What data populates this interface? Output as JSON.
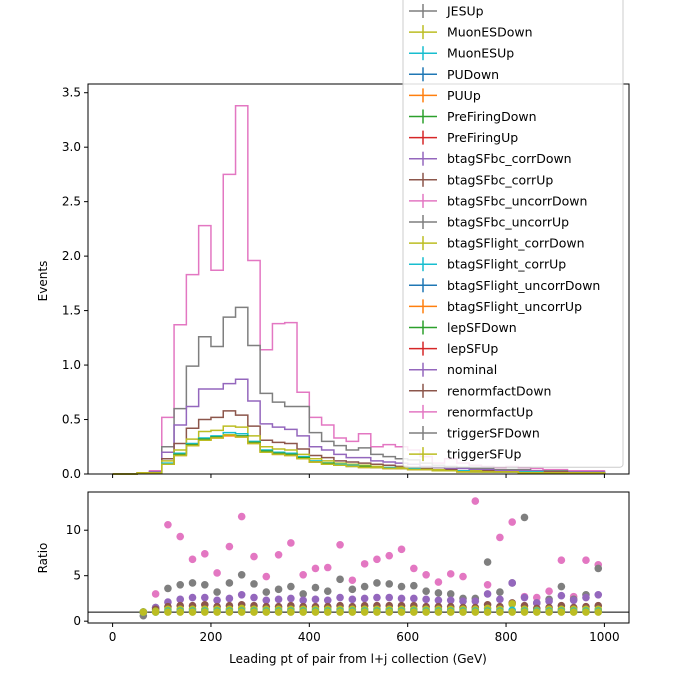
{
  "chart_data": {
    "type": "step-histogram-with-ratio",
    "x": {
      "label": "Leading pt of pair from l+j collection (GeV)",
      "lim": [
        -50,
        1050
      ],
      "ticks": [
        0,
        200,
        400,
        600,
        800,
        1000
      ],
      "bin_edges": [
        0,
        25,
        50,
        75,
        100,
        125,
        150,
        175,
        200,
        225,
        250,
        275,
        300,
        325,
        350,
        375,
        400,
        425,
        450,
        475,
        500,
        525,
        550,
        575,
        600,
        625,
        650,
        675,
        700,
        725,
        750,
        775,
        800,
        825,
        850,
        875,
        900,
        925,
        950,
        975,
        1000
      ]
    },
    "top": {
      "ylabel": "Events",
      "ylim": [
        0,
        3.58
      ],
      "yticks": [
        "0.0",
        "0.5",
        "1.0",
        "1.5",
        "2.0",
        "2.5",
        "3.0",
        "3.5"
      ],
      "ytick_values": [
        0,
        0.5,
        1.0,
        1.5,
        2.0,
        2.5,
        3.0,
        3.5
      ],
      "series": [
        {
          "color": "#e377c2",
          "values": [
            0,
            0,
            0.01,
            0.03,
            0.52,
            1.37,
            1.83,
            2.28,
            1.87,
            2.75,
            3.38,
            1.96,
            1.14,
            1.38,
            1.39,
            0.75,
            0.52,
            0.45,
            0.33,
            0.3,
            0.37,
            0.25,
            0.27,
            0.25,
            0.22,
            0.16,
            0.1,
            0.14,
            0.1,
            0.08,
            0.07,
            0.06,
            0.07,
            0.06,
            0.05,
            0.04,
            0.04,
            0.03,
            0.03,
            0.03
          ]
        },
        {
          "color": "#7f7f7f",
          "values": [
            0,
            0,
            0.01,
            0.02,
            0.25,
            0.6,
            0.99,
            1.26,
            1.17,
            1.44,
            1.53,
            1.18,
            0.74,
            0.66,
            0.62,
            0.62,
            0.38,
            0.3,
            0.26,
            0.22,
            0.24,
            0.18,
            0.16,
            0.14,
            0.13,
            0.1,
            0.08,
            0.07,
            0.06,
            0.05,
            0.05,
            0.04,
            0.04,
            0.04,
            0.03,
            0.03,
            0.03,
            0.02,
            0.02,
            0.02
          ]
        },
        {
          "color": "#9467bd",
          "values": [
            0,
            0,
            0.01,
            0.02,
            0.2,
            0.45,
            0.62,
            0.78,
            0.78,
            0.83,
            0.87,
            0.67,
            0.46,
            0.43,
            0.41,
            0.35,
            0.25,
            0.22,
            0.18,
            0.15,
            0.15,
            0.12,
            0.11,
            0.1,
            0.09,
            0.07,
            0.06,
            0.05,
            0.05,
            0.04,
            0.04,
            0.03,
            0.03,
            0.03,
            0.03,
            0.02,
            0.02,
            0.02,
            0.02,
            0.02
          ]
        },
        {
          "color": "#8c564b",
          "values": [
            0,
            0,
            0.01,
            0.01,
            0.14,
            0.28,
            0.42,
            0.5,
            0.52,
            0.58,
            0.54,
            0.44,
            0.31,
            0.29,
            0.28,
            0.23,
            0.17,
            0.15,
            0.12,
            0.11,
            0.1,
            0.09,
            0.08,
            0.07,
            0.06,
            0.05,
            0.04,
            0.04,
            0.03,
            0.03,
            0.03,
            0.02,
            0.02,
            0.02,
            0.02,
            0.02,
            0.02,
            0.01,
            0.01,
            0.01
          ]
        },
        {
          "color": "#bcbd22",
          "values": [
            0,
            0,
            0.01,
            0.01,
            0.12,
            0.22,
            0.32,
            0.39,
            0.4,
            0.44,
            0.43,
            0.35,
            0.25,
            0.23,
            0.22,
            0.18,
            0.14,
            0.12,
            0.1,
            0.09,
            0.08,
            0.07,
            0.06,
            0.06,
            0.05,
            0.04,
            0.04,
            0.03,
            0.03,
            0.03,
            0.02,
            0.02,
            0.02,
            0.02,
            0.02,
            0.01,
            0.01,
            0.01,
            0.01,
            0.01
          ]
        },
        {
          "color": "#17becf",
          "values": [
            0,
            0,
            0.01,
            0.01,
            0.1,
            0.19,
            0.28,
            0.33,
            0.35,
            0.38,
            0.37,
            0.3,
            0.22,
            0.2,
            0.19,
            0.16,
            0.12,
            0.1,
            0.09,
            0.08,
            0.07,
            0.06,
            0.06,
            0.05,
            0.05,
            0.04,
            0.03,
            0.03,
            0.03,
            0.02,
            0.02,
            0.02,
            0.02,
            0.02,
            0.02,
            0.01,
            0.01,
            0.01,
            0.01,
            0.01
          ]
        },
        {
          "color": "#2ca02c",
          "values": [
            0,
            0,
            0.01,
            0.01,
            0.09,
            0.18,
            0.27,
            0.32,
            0.34,
            0.36,
            0.35,
            0.29,
            0.21,
            0.19,
            0.18,
            0.15,
            0.11,
            0.1,
            0.08,
            0.07,
            0.07,
            0.06,
            0.05,
            0.05,
            0.04,
            0.04,
            0.03,
            0.03,
            0.02,
            0.02,
            0.02,
            0.02,
            0.02,
            0.01,
            0.01,
            0.01,
            0.01,
            0.01,
            0.01,
            0.01
          ]
        },
        {
          "color": "#ff7f0e",
          "values": [
            0,
            0,
            0.01,
            0.01,
            0.09,
            0.17,
            0.26,
            0.31,
            0.33,
            0.35,
            0.34,
            0.28,
            0.2,
            0.18,
            0.17,
            0.14,
            0.11,
            0.09,
            0.08,
            0.07,
            0.06,
            0.06,
            0.05,
            0.05,
            0.04,
            0.04,
            0.03,
            0.03,
            0.02,
            0.02,
            0.02,
            0.02,
            0.02,
            0.01,
            0.01,
            0.01,
            0.01,
            0.01,
            0.01,
            0.01
          ]
        },
        {
          "color": "#bcbd22",
          "values": [
            0,
            0,
            0.01,
            0.01,
            0.09,
            0.17,
            0.26,
            0.31,
            0.33,
            0.36,
            0.34,
            0.28,
            0.2,
            0.18,
            0.17,
            0.14,
            0.11,
            0.09,
            0.08,
            0.07,
            0.06,
            0.06,
            0.05,
            0.05,
            0.04,
            0.04,
            0.03,
            0.03,
            0.02,
            0.02,
            0.02,
            0.02,
            0.02,
            0.01,
            0.01,
            0.01,
            0.01,
            0.01,
            0.01,
            0.01
          ]
        }
      ]
    },
    "bottom": {
      "ylabel": "Ratio",
      "ylim": [
        -0.2,
        14.2
      ],
      "yticks": [
        "0",
        "5",
        "10"
      ],
      "ytick_values": [
        0,
        5,
        10
      ],
      "reference_line": 1,
      "scatter_bins": [
        2,
        3,
        4,
        5,
        6,
        7,
        8,
        9,
        10,
        11,
        12,
        13,
        14,
        15,
        16,
        17,
        18,
        19,
        20,
        21,
        22,
        23,
        24,
        25,
        26,
        27,
        28,
        29,
        30,
        31,
        32,
        33,
        34,
        35,
        36,
        37,
        38,
        39
      ],
      "series": [
        {
          "color": "#e377c2",
          "values": [
            1.0,
            3.0,
            10.6,
            9.3,
            6.8,
            7.4,
            5.3,
            8.2,
            11.5,
            7.1,
            4.9,
            7.3,
            8.6,
            5.1,
            5.8,
            5.9,
            8.4,
            4.5,
            6.3,
            6.8,
            7.2,
            7.9,
            5.8,
            5.1,
            4.3,
            5.2,
            4.9,
            13.2,
            4.0,
            9.2,
            10.9,
            2.7,
            2.6,
            3.3,
            6.7,
            2.7,
            6.7,
            6.2
          ]
        },
        {
          "color": "#7f7f7f",
          "values": [
            0.6,
            1.5,
            3.6,
            4.0,
            4.2,
            4.0,
            3.2,
            4.2,
            5.1,
            4.1,
            3.2,
            3.5,
            3.8,
            3.0,
            3.7,
            3.3,
            4.6,
            3.5,
            3.8,
            4.2,
            4.1,
            3.8,
            3.9,
            3.3,
            3.1,
            3.0,
            2.5,
            2.5,
            6.5,
            3.2,
            4.2,
            11.4,
            2.0,
            2.4,
            3.8,
            2.4,
            2.9,
            5.8
          ]
        },
        {
          "color": "#9467bd",
          "values": [
            1.0,
            1.5,
            2.1,
            2.4,
            2.6,
            2.6,
            2.3,
            2.5,
            2.9,
            2.6,
            2.3,
            2.4,
            2.5,
            2.3,
            2.4,
            2.3,
            2.6,
            2.4,
            2.5,
            2.6,
            2.6,
            2.5,
            2.5,
            2.4,
            2.3,
            2.3,
            2.2,
            2.2,
            3.0,
            2.4,
            4.2,
            2.6,
            2.0,
            2.2,
            2.8,
            2.3,
            2.6,
            2.9
          ]
        },
        {
          "color": "#8c564b",
          "values": [
            1.0,
            1.3,
            1.6,
            1.7,
            1.7,
            1.8,
            1.6,
            1.7,
            1.8,
            1.7,
            1.6,
            1.6,
            1.7,
            1.6,
            1.6,
            1.6,
            1.7,
            1.6,
            1.7,
            1.7,
            1.7,
            1.7,
            1.7,
            1.6,
            1.6,
            1.6,
            1.5,
            1.5,
            1.8,
            1.6,
            2.0,
            1.7,
            1.4,
            1.5,
            1.7,
            1.5,
            1.6,
            1.7
          ]
        },
        {
          "color": "#bcbd22",
          "values": [
            1.0,
            1.1,
            1.3,
            1.3,
            1.3,
            1.3,
            1.3,
            1.3,
            1.4,
            1.3,
            1.3,
            1.3,
            1.3,
            1.3,
            1.3,
            1.3,
            1.3,
            1.3,
            1.3,
            1.3,
            1.3,
            1.3,
            1.3,
            1.3,
            1.3,
            1.3,
            1.3,
            1.3,
            1.4,
            1.3,
            1.9,
            1.3,
            1.2,
            1.3,
            1.3,
            1.3,
            1.3,
            1.3
          ]
        },
        {
          "color": "#17becf",
          "values": [
            1.0,
            1.0,
            1.1,
            1.1,
            1.1,
            1.1,
            1.1,
            1.1,
            1.1,
            1.1,
            1.1,
            1.1,
            1.1,
            1.1,
            1.1,
            1.1,
            1.1,
            1.1,
            1.1,
            1.1,
            1.1,
            1.1,
            1.1,
            1.1,
            1.1,
            1.1,
            1.1,
            1.1,
            1.1,
            1.1,
            1.2,
            1.1,
            1.1,
            1.1,
            1.1,
            1.1,
            1.1,
            1.1
          ]
        },
        {
          "color": "#bcbd22",
          "values": [
            1.0,
            1.0,
            1.0,
            1.0,
            1.0,
            1.0,
            1.0,
            1.0,
            1.0,
            1.0,
            1.0,
            1.0,
            1.0,
            1.0,
            1.0,
            1.0,
            1.0,
            1.0,
            1.0,
            1.0,
            1.0,
            1.0,
            1.0,
            1.0,
            1.0,
            1.0,
            1.0,
            1.0,
            1.0,
            1.0,
            1.0,
            1.0,
            1.0,
            1.0,
            1.0,
            1.0,
            1.0,
            1.0
          ]
        }
      ]
    },
    "legend": {
      "placement": "top-right",
      "entries": [
        {
          "label": "JESUp",
          "color": "#7f7f7f"
        },
        {
          "label": "MuonESDown",
          "color": "#bcbd22"
        },
        {
          "label": "MuonESUp",
          "color": "#17becf"
        },
        {
          "label": "PUDown",
          "color": "#1f77b4"
        },
        {
          "label": "PUUp",
          "color": "#ff7f0e"
        },
        {
          "label": "PreFiringDown",
          "color": "#2ca02c"
        },
        {
          "label": "PreFiringUp",
          "color": "#d62728"
        },
        {
          "label": "btagSFbc_corrDown",
          "color": "#9467bd"
        },
        {
          "label": "btagSFbc_corrUp",
          "color": "#8c564b"
        },
        {
          "label": "btagSFbc_uncorrDown",
          "color": "#e377c2"
        },
        {
          "label": "btagSFbc_uncorrUp",
          "color": "#7f7f7f"
        },
        {
          "label": "btagSFlight_corrDown",
          "color": "#bcbd22"
        },
        {
          "label": "btagSFlight_corrUp",
          "color": "#17becf"
        },
        {
          "label": "btagSFlight_uncorrDown",
          "color": "#1f77b4"
        },
        {
          "label": "btagSFlight_uncorrUp",
          "color": "#ff7f0e"
        },
        {
          "label": "lepSFDown",
          "color": "#2ca02c"
        },
        {
          "label": "lepSFUp",
          "color": "#d62728"
        },
        {
          "label": "nominal",
          "color": "#9467bd"
        },
        {
          "label": "renormfactDown",
          "color": "#8c564b"
        },
        {
          "label": "renormfactUp",
          "color": "#e377c2"
        },
        {
          "label": "triggerSFDown",
          "color": "#7f7f7f"
        },
        {
          "label": "triggerSFUp",
          "color": "#bcbd22"
        }
      ]
    }
  }
}
